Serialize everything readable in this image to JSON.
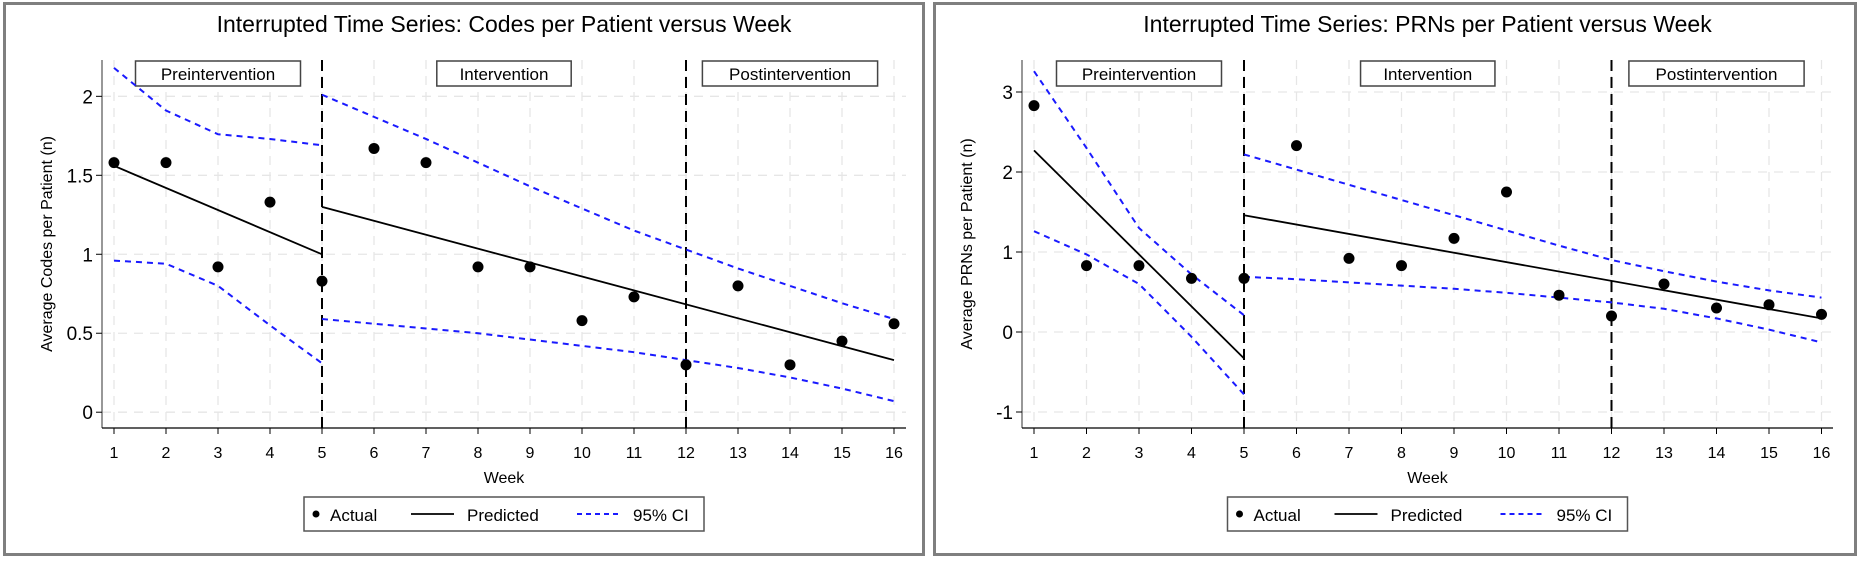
{
  "chart_data": [
    {
      "type": "line",
      "title": "Interrupted Time Series: Codes per Patient versus Week",
      "xlabel": "Week",
      "ylabel": "Average Codes per Patient (n)",
      "x": [
        1,
        2,
        3,
        4,
        5,
        6,
        7,
        8,
        9,
        10,
        11,
        12,
        13,
        14,
        15,
        16
      ],
      "xticks": [
        "1",
        "2",
        "3",
        "4",
        "5",
        "6",
        "7",
        "8",
        "9",
        "10",
        "11",
        "12",
        "13",
        "14",
        "15",
        "16"
      ],
      "yticks": [
        0,
        0.5,
        1,
        1.5,
        2
      ],
      "ytick_labels": [
        "0",
        "0.5",
        "1",
        "1.5",
        "2"
      ],
      "ylim": [
        -0.1,
        2.23
      ],
      "xlim": [
        0.77,
        16.2
      ],
      "grid": true,
      "interruptions": [
        5,
        12
      ],
      "phases": [
        "Preintervention",
        "Intervention",
        "Postintervention"
      ],
      "actual": [
        1.58,
        1.58,
        0.92,
        1.33,
        0.83,
        1.67,
        1.58,
        0.92,
        0.92,
        0.58,
        0.73,
        0.3,
        0.8,
        0.3,
        0.45,
        0.56
      ],
      "predicted_segments": [
        {
          "x": [
            1,
            5
          ],
          "y": [
            1.56,
            1.0
          ]
        },
        {
          "x": [
            5,
            16
          ],
          "y": [
            1.3,
            0.33
          ]
        }
      ],
      "ci_upper_segments": [
        {
          "x": [
            1,
            2,
            3,
            4,
            5
          ],
          "y": [
            2.18,
            1.91,
            1.76,
            1.73,
            1.69
          ]
        },
        {
          "x": [
            5,
            6,
            7,
            8,
            9,
            10,
            11,
            12,
            13,
            14,
            15,
            16
          ],
          "y": [
            2.01,
            1.87,
            1.73,
            1.58,
            1.43,
            1.29,
            1.15,
            1.03,
            0.91,
            0.8,
            0.69,
            0.59
          ]
        }
      ],
      "ci_lower_segments": [
        {
          "x": [
            1,
            2,
            3,
            4,
            5
          ],
          "y": [
            0.96,
            0.94,
            0.8,
            0.55,
            0.31
          ]
        },
        {
          "x": [
            5,
            6,
            7,
            8,
            9,
            10,
            11,
            12,
            13,
            14,
            15,
            16
          ],
          "y": [
            0.59,
            0.56,
            0.53,
            0.5,
            0.46,
            0.42,
            0.38,
            0.33,
            0.28,
            0.22,
            0.15,
            0.07
          ]
        }
      ],
      "legend": [
        "Actual",
        "Predicted",
        "95% CI"
      ],
      "legend_placement": "bottom",
      "colors": {
        "actual": "#000000",
        "predicted": "#000000",
        "ci": "#1a1aff",
        "grid": "#e6e6e6"
      }
    },
    {
      "type": "line",
      "title": "Interrupted Time Series: PRNs per Patient versus Week",
      "xlabel": "Week",
      "ylabel": "Average PRNs per Patient (n)",
      "x": [
        1,
        2,
        3,
        4,
        5,
        6,
        7,
        8,
        9,
        10,
        11,
        12,
        13,
        14,
        15,
        16
      ],
      "xticks": [
        "1",
        "2",
        "3",
        "4",
        "5",
        "6",
        "7",
        "8",
        "9",
        "10",
        "11",
        "12",
        "13",
        "14",
        "15",
        "16"
      ],
      "yticks": [
        -1,
        0,
        1,
        2,
        3
      ],
      "ytick_labels": [
        "-1",
        "0",
        "1",
        "2",
        "3"
      ],
      "ylim": [
        -1.2,
        3.4
      ],
      "xlim": [
        0.77,
        16.2
      ],
      "grid": true,
      "interruptions": [
        5,
        12
      ],
      "phases": [
        "Preintervention",
        "Intervention",
        "Postintervention"
      ],
      "actual": [
        2.83,
        0.83,
        0.83,
        0.67,
        0.67,
        2.33,
        0.92,
        0.83,
        1.17,
        1.75,
        0.46,
        0.2,
        0.6,
        0.3,
        0.34,
        0.22
      ],
      "predicted_segments": [
        {
          "x": [
            1,
            5
          ],
          "y": [
            2.27,
            -0.33
          ]
        },
        {
          "x": [
            5,
            16
          ],
          "y": [
            1.46,
            0.17
          ]
        }
      ],
      "ci_upper_segments": [
        {
          "x": [
            1,
            2,
            3,
            4,
            5
          ],
          "y": [
            3.26,
            2.3,
            1.3,
            0.72,
            0.21
          ]
        },
        {
          "x": [
            5,
            6,
            7,
            8,
            9,
            10,
            11,
            12,
            13,
            14,
            15,
            16
          ],
          "y": [
            2.22,
            2.03,
            1.84,
            1.65,
            1.46,
            1.27,
            1.08,
            0.9,
            0.76,
            0.63,
            0.52,
            0.43
          ]
        }
      ],
      "ci_lower_segments": [
        {
          "x": [
            1,
            2,
            3,
            4,
            5
          ],
          "y": [
            1.26,
            0.97,
            0.6,
            -0.06,
            -0.78
          ]
        },
        {
          "x": [
            5,
            6,
            7,
            8,
            9,
            10,
            11,
            12,
            13,
            14,
            15,
            16
          ],
          "y": [
            0.69,
            0.66,
            0.62,
            0.58,
            0.54,
            0.49,
            0.43,
            0.37,
            0.29,
            0.17,
            0.03,
            -0.13
          ]
        }
      ],
      "legend": [
        "Actual",
        "Predicted",
        "95% CI"
      ],
      "legend_placement": "bottom",
      "colors": {
        "actual": "#000000",
        "predicted": "#000000",
        "ci": "#1a1aff",
        "grid": "#e6e6e6"
      }
    }
  ]
}
